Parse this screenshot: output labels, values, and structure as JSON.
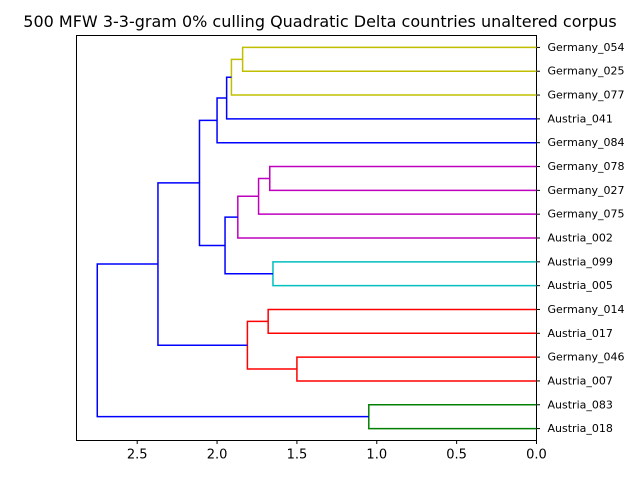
{
  "chart_data": {
    "type": "dendrogram",
    "title": "500 MFW 3-3-gram 0% culling Quadratic Delta countries unaltered corpus",
    "xlabel": "",
    "ylabel": "",
    "orientation": "left",
    "xlim": [
      2.88,
      0.0
    ],
    "xticks": [
      {
        "value": 2.5,
        "label": "2.5"
      },
      {
        "value": 2.0,
        "label": "2.0"
      },
      {
        "value": 1.5,
        "label": "1.5"
      },
      {
        "value": 1.0,
        "label": "1.0"
      },
      {
        "value": 0.5,
        "label": "0.5"
      },
      {
        "value": 0.0,
        "label": "0.0"
      }
    ],
    "leaves": [
      "Germany_054",
      "Germany_025",
      "Germany_077",
      "Austria_041",
      "Germany_084",
      "Germany_078",
      "Germany_027",
      "Germany_075",
      "Austria_002",
      "Austria_099",
      "Austria_005",
      "Germany_014",
      "Austria_017",
      "Germany_046",
      "Austria_007",
      "Austria_083",
      "Austria_018"
    ],
    "merges": [
      {
        "id": "c1",
        "children": [
          "L0",
          "L1"
        ],
        "height": 1.84,
        "color": "#bfbf00"
      },
      {
        "id": "c2",
        "children": [
          "c1",
          "L2"
        ],
        "height": 1.91,
        "color": "#bfbf00"
      },
      {
        "id": "c3",
        "children": [
          "c2",
          "L3"
        ],
        "height": 1.94,
        "color": "#0000ff"
      },
      {
        "id": "c4",
        "children": [
          "c3",
          "L4"
        ],
        "height": 2.0,
        "color": "#0000ff"
      },
      {
        "id": "c5",
        "children": [
          "L5",
          "L6"
        ],
        "height": 1.67,
        "color": "#bf00bf"
      },
      {
        "id": "c6",
        "children": [
          "c5",
          "L7"
        ],
        "height": 1.74,
        "color": "#bf00bf"
      },
      {
        "id": "c7",
        "children": [
          "c6",
          "L8"
        ],
        "height": 1.87,
        "color": "#bf00bf"
      },
      {
        "id": "c8",
        "children": [
          "L9",
          "L10"
        ],
        "height": 1.65,
        "color": "#00bfbf"
      },
      {
        "id": "c9",
        "children": [
          "c7",
          "c8"
        ],
        "height": 1.95,
        "color": "#0000ff"
      },
      {
        "id": "c10",
        "children": [
          "c4",
          "c9"
        ],
        "height": 2.11,
        "color": "#0000ff"
      },
      {
        "id": "c11",
        "children": [
          "L11",
          "L12"
        ],
        "height": 1.68,
        "color": "#ff0000"
      },
      {
        "id": "c12",
        "children": [
          "L13",
          "L14"
        ],
        "height": 1.5,
        "color": "#ff0000"
      },
      {
        "id": "c13",
        "children": [
          "c11",
          "c12"
        ],
        "height": 1.81,
        "color": "#ff0000"
      },
      {
        "id": "c14",
        "children": [
          "c10",
          "c13"
        ],
        "height": 2.37,
        "color": "#0000ff"
      },
      {
        "id": "c15",
        "children": [
          "L15",
          "L16"
        ],
        "height": 1.05,
        "color": "#008000"
      },
      {
        "id": "c16",
        "children": [
          "c14",
          "c15"
        ],
        "height": 2.75,
        "color": "#0000ff"
      }
    ]
  }
}
